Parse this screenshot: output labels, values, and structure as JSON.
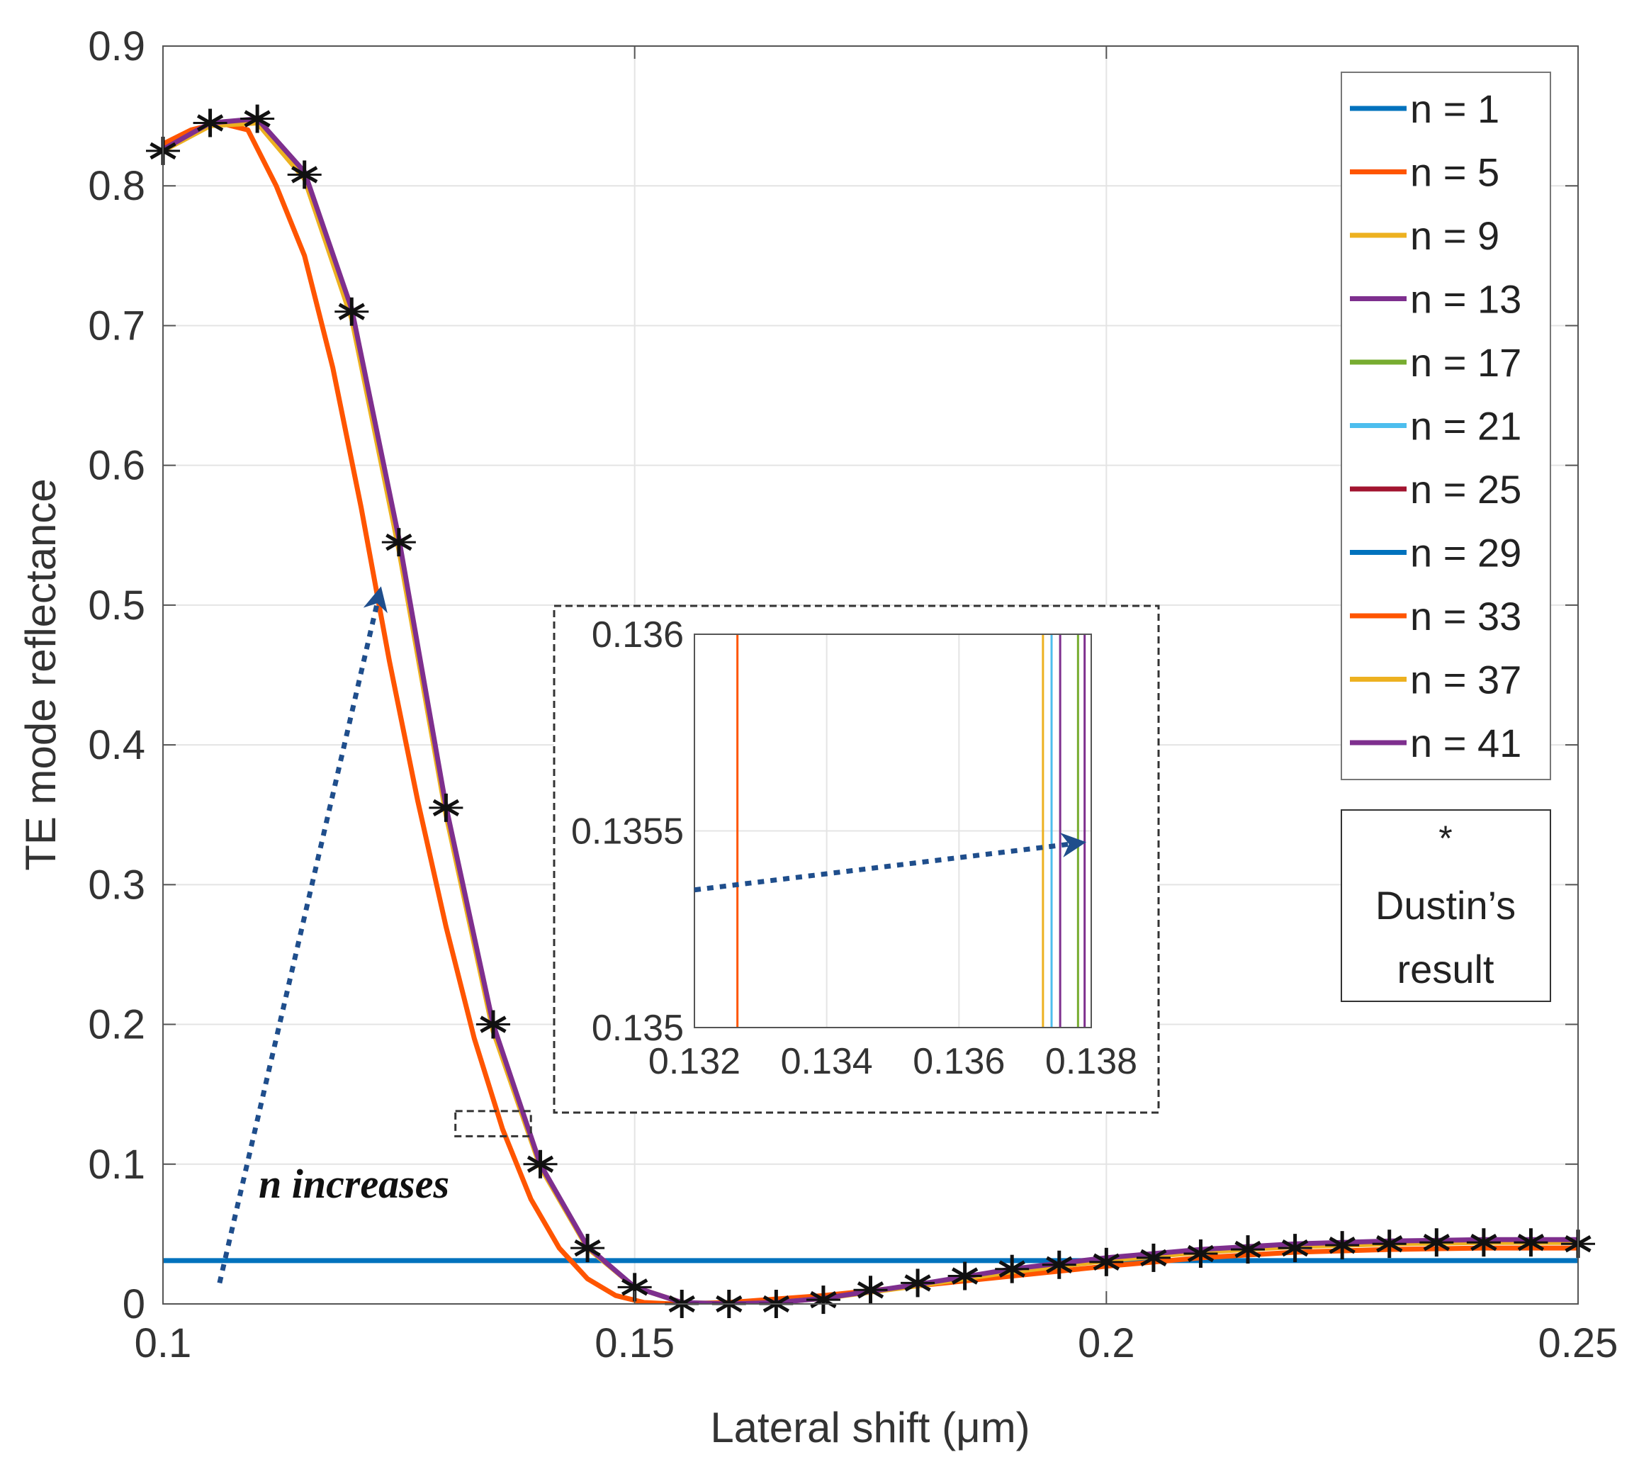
{
  "chart_data": {
    "type": "line",
    "title": "",
    "xlabel": "Lateral shift (μm)",
    "ylabel": "TE mode reflectance",
    "xlim": [
      0.1,
      0.25
    ],
    "ylim": [
      0,
      0.9
    ],
    "xticks": [
      "0.1",
      "0.15",
      "0.2",
      "0.25"
    ],
    "yticks": [
      "0",
      "0.1",
      "0.2",
      "0.3",
      "0.4",
      "0.5",
      "0.6",
      "0.7",
      "0.8",
      "0.9"
    ],
    "grid": true,
    "legend_position": "top-right",
    "series": [
      {
        "name": "n = 1",
        "color": "#0072BD",
        "x": [
          0.1,
          0.25
        ],
        "y": [
          0.031,
          0.031
        ]
      },
      {
        "name": "n = 5",
        "color": "#FF5500",
        "x": [
          0.1,
          0.103,
          0.106,
          0.109,
          0.112,
          0.115,
          0.118,
          0.121,
          0.124,
          0.127,
          0.13,
          0.133,
          0.136,
          0.139,
          0.142,
          0.145,
          0.148,
          0.151,
          0.154,
          0.16,
          0.17,
          0.18,
          0.19,
          0.2,
          0.21,
          0.22,
          0.23,
          0.24,
          0.25
        ],
        "y": [
          0.83,
          0.84,
          0.845,
          0.84,
          0.8,
          0.75,
          0.67,
          0.57,
          0.46,
          0.36,
          0.27,
          0.19,
          0.125,
          0.075,
          0.04,
          0.018,
          0.006,
          0.001,
          0.0,
          0.001,
          0.006,
          0.013,
          0.02,
          0.027,
          0.033,
          0.037,
          0.039,
          0.04,
          0.04
        ]
      },
      {
        "name": "n = 9",
        "color": "#EDB120",
        "x": [
          0.1,
          0.105,
          0.11,
          0.115,
          0.12,
          0.125,
          0.13,
          0.135,
          0.14,
          0.145,
          0.15,
          0.155,
          0.16,
          0.165,
          0.17,
          0.18,
          0.19,
          0.2,
          0.21,
          0.22,
          0.23,
          0.24,
          0.25
        ],
        "y": [
          0.825,
          0.843,
          0.845,
          0.805,
          0.705,
          0.54,
          0.35,
          0.195,
          0.098,
          0.04,
          0.012,
          0.001,
          0.0,
          0.001,
          0.004,
          0.013,
          0.023,
          0.031,
          0.037,
          0.041,
          0.043,
          0.044,
          0.044
        ]
      },
      {
        "name": "n = 13",
        "color": "#7E2F8E",
        "x": [
          0.1,
          0.105,
          0.11,
          0.115,
          0.12,
          0.125,
          0.13,
          0.135,
          0.14,
          0.145,
          0.15,
          0.155,
          0.16,
          0.165,
          0.17,
          0.18,
          0.19,
          0.2,
          0.21,
          0.22,
          0.23,
          0.24,
          0.25
        ],
        "y": [
          0.826,
          0.845,
          0.848,
          0.81,
          0.712,
          0.548,
          0.356,
          0.2,
          0.1,
          0.041,
          0.012,
          0.001,
          0.0,
          0.001,
          0.004,
          0.014,
          0.025,
          0.033,
          0.039,
          0.043,
          0.045,
          0.046,
          0.046
        ]
      },
      {
        "name": "n = 17",
        "color": "#77AC30"
      },
      {
        "name": "n = 21",
        "color": "#4DBEEE"
      },
      {
        "name": "n = 25",
        "color": "#A2142F"
      },
      {
        "name": "n = 29",
        "color": "#0072BD"
      },
      {
        "name": "n = 33",
        "color": "#FF5500"
      },
      {
        "name": "n = 37",
        "color": "#EDB120"
      },
      {
        "name": "n = 41",
        "color": "#7E2F8E"
      }
    ],
    "reference": {
      "name": "Dustin’s result",
      "marker": "*",
      "legend_lines": [
        "*",
        "Dustin’s",
        "result"
      ],
      "x": [
        0.1,
        0.105,
        0.11,
        0.115,
        0.12,
        0.125,
        0.13,
        0.135,
        0.14,
        0.145,
        0.15,
        0.155,
        0.16,
        0.165,
        0.17,
        0.175,
        0.18,
        0.185,
        0.19,
        0.195,
        0.2,
        0.205,
        0.21,
        0.215,
        0.22,
        0.225,
        0.23,
        0.235,
        0.24,
        0.245,
        0.25
      ],
      "y": [
        0.825,
        0.845,
        0.848,
        0.808,
        0.71,
        0.545,
        0.355,
        0.2,
        0.1,
        0.04,
        0.012,
        0.0,
        0.0,
        0.0,
        0.003,
        0.01,
        0.015,
        0.02,
        0.025,
        0.028,
        0.03,
        0.033,
        0.036,
        0.039,
        0.04,
        0.042,
        0.043,
        0.044,
        0.044,
        0.044,
        0.043
      ]
    },
    "annotation": {
      "text": "n increases",
      "from": [
        0.106,
        0.015
      ],
      "to": [
        0.123,
        0.51
      ]
    },
    "highlight_box": {
      "x": [
        0.131,
        0.139
      ],
      "y": [
        0.12,
        0.138
      ]
    },
    "inset": {
      "xlim": [
        0.132,
        0.138
      ],
      "ylim": [
        0.135,
        0.136
      ],
      "xticks": [
        "0.132",
        "0.134",
        "0.136",
        "0.138"
      ],
      "yticks": [
        "0.135",
        "0.1355",
        "0.136"
      ],
      "vlines": [
        {
          "x": 0.13265,
          "color": "#FF5500"
        },
        {
          "x": 0.13727,
          "color": "#EDB120"
        },
        {
          "x": 0.1374,
          "color": "#4DBEEE"
        },
        {
          "x": 0.13753,
          "color": "#7E2F8E"
        },
        {
          "x": 0.1378,
          "color": "#77AC30"
        },
        {
          "x": 0.1379,
          "color": "#7E2F8E"
        }
      ],
      "arrow": {
        "from": [
          0.132,
          0.13535
        ],
        "to": [
          0.13785,
          0.13547
        ]
      }
    }
  }
}
